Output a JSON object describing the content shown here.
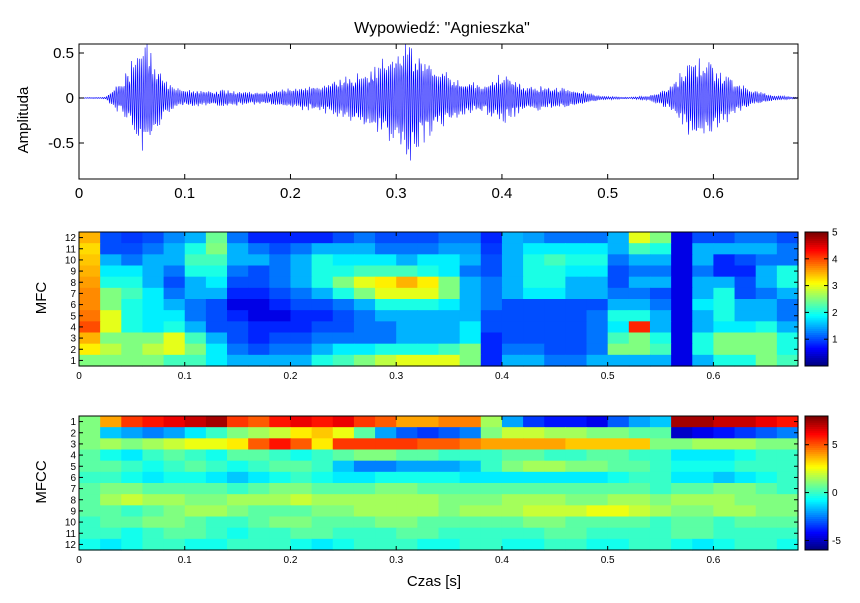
{
  "chart_data": [
    {
      "type": "line",
      "title": "Wypowiedź: \"Agnieszka\"",
      "ylabel": "Amplituda",
      "xlabel": "",
      "xlim": [
        0,
        0.68
      ],
      "ylim": [
        -0.9,
        0.6
      ],
      "xticks": [
        0,
        0.1,
        0.2,
        0.3,
        0.4,
        0.5,
        0.6
      ],
      "xtick_labels": [
        "0",
        "0.1",
        "0.2",
        "0.3",
        "0.4",
        "0.5",
        "0.6"
      ],
      "yticks": [
        0.5,
        0,
        -0.5
      ],
      "ytick_labels": [
        "0.5",
        "0",
        "-0.5"
      ],
      "grid": false,
      "color": "#0000ff",
      "series": [
        {
          "x": [
            0,
            0.025,
            0.03,
            0.04,
            0.05,
            0.06,
            0.07,
            0.08,
            0.09,
            0.1,
            0.12,
            0.14,
            0.16,
            0.18,
            0.2,
            0.22,
            0.24,
            0.26,
            0.28,
            0.3,
            0.31,
            0.32,
            0.34,
            0.36,
            0.38,
            0.4,
            0.42,
            0.44,
            0.46,
            0.48,
            0.49,
            0.5,
            0.52,
            0.54,
            0.56,
            0.58,
            0.6,
            0.62,
            0.64,
            0.66,
            0.68
          ],
          "envelope": [
            0.005,
            0.01,
            0.08,
            0.2,
            0.45,
            0.7,
            0.5,
            0.25,
            0.12,
            0.1,
            0.09,
            0.1,
            0.08,
            0.08,
            0.12,
            0.15,
            0.2,
            0.28,
            0.4,
            0.55,
            0.8,
            0.6,
            0.35,
            0.25,
            0.15,
            0.3,
            0.15,
            0.14,
            0.12,
            0.08,
            0.03,
            0.02,
            0.01,
            0.03,
            0.15,
            0.5,
            0.4,
            0.2,
            0.08,
            0.03,
            0.01
          ]
        }
      ]
    },
    {
      "type": "heatmap",
      "ylabel": "MFC",
      "xlabel": "",
      "xlim": [
        0,
        0.68
      ],
      "ylim": [
        1,
        12
      ],
      "xticks": [
        0,
        0.1,
        0.2,
        0.3,
        0.4,
        0.5,
        0.6
      ],
      "xtick_labels": [
        "0",
        "0.1",
        "0.2",
        "0.3",
        "0.4",
        "0.5",
        "0.6"
      ],
      "yticks": [
        1,
        2,
        3,
        4,
        5,
        6,
        7,
        8,
        9,
        10,
        11,
        12
      ],
      "ytick_labels": [
        "1",
        "2",
        "3",
        "4",
        "5",
        "6",
        "7",
        "8",
        "9",
        "10",
        "11",
        "12"
      ],
      "colormap": "jet",
      "clim": [
        0,
        5
      ],
      "colorbar_ticks": [
        1,
        2,
        3,
        4,
        5
      ],
      "colorbar_tick_labels": [
        "1",
        "2",
        "3",
        "4",
        "5"
      ],
      "rows_top_to_bottom": [
        12,
        11,
        10,
        9,
        8,
        7,
        6,
        5,
        4,
        3,
        2,
        1
      ],
      "time_bins": [
        0.0,
        0.02,
        0.04,
        0.06,
        0.08,
        0.1,
        0.12,
        0.14,
        0.16,
        0.18,
        0.2,
        0.22,
        0.24,
        0.26,
        0.28,
        0.3,
        0.32,
        0.34,
        0.36,
        0.38,
        0.4,
        0.42,
        0.44,
        0.46,
        0.48,
        0.5,
        0.52,
        0.54,
        0.56,
        0.58,
        0.6,
        0.62,
        0.64,
        0.66
      ],
      "values": [
        [
          3.5,
          1.0,
          0.9,
          1.0,
          1.3,
          1.5,
          2.4,
          1.2,
          0.8,
          0.8,
          0.8,
          0.8,
          1.0,
          1.2,
          1.0,
          1.0,
          1.0,
          1.2,
          1.2,
          0.8,
          1.5,
          1.4,
          1.2,
          1.2,
          1.2,
          1.5,
          3.0,
          2.5,
          0.5,
          1.0,
          1.0,
          1.2,
          1.2,
          1.0
        ],
        [
          3.3,
          1.0,
          1.0,
          1.2,
          1.5,
          2.0,
          2.5,
          1.5,
          1.2,
          1.0,
          1.2,
          1.5,
          1.5,
          1.5,
          1.2,
          1.2,
          1.2,
          1.4,
          1.4,
          0.9,
          1.5,
          1.8,
          1.8,
          1.8,
          1.8,
          1.5,
          2.2,
          2.0,
          0.5,
          1.5,
          1.5,
          1.5,
          1.5,
          1.2
        ],
        [
          3.4,
          1.5,
          1.2,
          1.5,
          1.5,
          2.2,
          2.2,
          1.5,
          1.5,
          1.2,
          1.5,
          2.0,
          1.8,
          1.8,
          1.8,
          1.5,
          1.8,
          1.8,
          1.5,
          1.0,
          1.5,
          2.0,
          2.2,
          2.0,
          2.0,
          1.2,
          1.5,
          1.5,
          0.5,
          1.5,
          0.8,
          1.0,
          1.2,
          1.2
        ],
        [
          3.5,
          1.8,
          1.8,
          1.5,
          1.2,
          2.0,
          2.0,
          1.2,
          1.0,
          1.2,
          1.5,
          2.0,
          2.0,
          2.2,
          2.2,
          2.2,
          2.0,
          1.8,
          1.2,
          1.0,
          1.5,
          2.0,
          2.0,
          1.8,
          1.8,
          1.0,
          1.2,
          1.2,
          0.5,
          1.2,
          0.8,
          0.8,
          1.5,
          2.0
        ],
        [
          3.6,
          2.0,
          2.0,
          1.5,
          1.0,
          1.5,
          1.8,
          1.0,
          1.0,
          1.2,
          1.5,
          2.0,
          2.5,
          3.0,
          3.2,
          3.5,
          3.2,
          2.5,
          1.5,
          1.2,
          1.5,
          2.0,
          2.0,
          1.5,
          1.5,
          1.0,
          1.5,
          1.5,
          0.5,
          1.5,
          1.5,
          1.0,
          1.5,
          2.0
        ],
        [
          3.7,
          2.5,
          2.2,
          1.8,
          1.2,
          1.5,
          1.5,
          0.8,
          0.8,
          1.0,
          1.2,
          1.5,
          2.0,
          2.5,
          3.0,
          3.0,
          3.0,
          2.5,
          1.5,
          1.2,
          1.5,
          1.8,
          1.8,
          1.5,
          1.5,
          1.2,
          1.2,
          1.0,
          0.5,
          1.5,
          2.0,
          1.0,
          1.2,
          1.5
        ],
        [
          3.7,
          2.5,
          2.0,
          1.8,
          1.5,
          1.2,
          1.0,
          0.5,
          0.5,
          0.8,
          1.0,
          1.0,
          1.2,
          1.5,
          2.0,
          2.0,
          2.0,
          1.8,
          1.5,
          1.2,
          1.0,
          1.0,
          1.0,
          1.0,
          1.0,
          1.5,
          1.5,
          1.2,
          0.5,
          1.8,
          2.0,
          1.5,
          1.5,
          1.2
        ],
        [
          3.8,
          3.0,
          2.0,
          1.8,
          1.8,
          1.2,
          1.0,
          0.8,
          0.5,
          0.5,
          0.8,
          0.8,
          1.0,
          1.2,
          1.5,
          1.5,
          1.5,
          1.5,
          1.5,
          1.0,
          1.0,
          1.0,
          1.0,
          1.0,
          1.2,
          2.0,
          2.0,
          1.5,
          0.5,
          1.5,
          2.0,
          1.5,
          1.5,
          1.2
        ],
        [
          4.0,
          3.0,
          2.0,
          1.8,
          2.0,
          1.5,
          1.0,
          1.0,
          0.8,
          0.8,
          0.8,
          1.0,
          1.0,
          1.2,
          1.2,
          1.5,
          1.5,
          1.5,
          1.8,
          1.0,
          1.0,
          1.0,
          1.0,
          1.0,
          1.2,
          1.8,
          4.2,
          1.5,
          0.5,
          1.5,
          1.8,
          1.8,
          2.0,
          1.5
        ],
        [
          3.5,
          2.5,
          2.5,
          2.5,
          3.0,
          2.2,
          1.5,
          1.0,
          0.8,
          1.0,
          1.0,
          1.2,
          1.2,
          1.2,
          1.2,
          1.5,
          1.5,
          1.5,
          1.8,
          0.8,
          1.0,
          1.0,
          1.0,
          1.0,
          1.2,
          2.2,
          2.5,
          2.0,
          0.5,
          2.0,
          2.5,
          2.5,
          2.5,
          2.0
        ],
        [
          3.2,
          2.8,
          2.5,
          2.8,
          3.0,
          2.5,
          1.8,
          1.2,
          1.0,
          1.2,
          1.2,
          1.5,
          1.8,
          1.8,
          2.0,
          2.0,
          2.0,
          2.2,
          2.5,
          0.8,
          1.2,
          1.2,
          1.0,
          1.0,
          1.2,
          2.5,
          2.5,
          2.2,
          0.5,
          2.0,
          2.5,
          2.5,
          2.5,
          2.0
        ],
        [
          2.5,
          2.5,
          2.5,
          2.5,
          2.2,
          2.2,
          1.8,
          1.5,
          1.5,
          1.5,
          1.5,
          2.0,
          2.2,
          2.5,
          2.8,
          3.0,
          3.0,
          3.0,
          2.5,
          0.8,
          1.5,
          1.5,
          1.2,
          1.2,
          1.5,
          1.5,
          1.5,
          1.5,
          0.5,
          1.5,
          2.0,
          2.0,
          2.5,
          2.2
        ]
      ]
    },
    {
      "type": "heatmap",
      "ylabel": "MFCC",
      "xlabel": "Czas [s]",
      "xlim": [
        0,
        0.68
      ],
      "ylim": [
        1,
        12
      ],
      "xticks": [
        0,
        0.1,
        0.2,
        0.3,
        0.4,
        0.5,
        0.6
      ],
      "xtick_labels": [
        "0",
        "0.1",
        "0.2",
        "0.3",
        "0.4",
        "0.5",
        "0.6"
      ],
      "yticks": [
        1,
        2,
        3,
        4,
        5,
        6,
        7,
        8,
        9,
        10,
        11,
        12
      ],
      "ytick_labels": [
        "1",
        "2",
        "3",
        "4",
        "5",
        "6",
        "7",
        "8",
        "9",
        "10",
        "11",
        "12"
      ],
      "colormap": "jet",
      "clim": [
        -6,
        8
      ],
      "colorbar_ticks": [
        5,
        0,
        -5
      ],
      "colorbar_tick_labels": [
        "5",
        "0",
        "-5"
      ],
      "rows_top_to_bottom": [
        1,
        2,
        3,
        4,
        5,
        6,
        7,
        8,
        9,
        10,
        11,
        12
      ],
      "time_bins": [
        0.0,
        0.02,
        0.04,
        0.06,
        0.08,
        0.1,
        0.12,
        0.14,
        0.16,
        0.18,
        0.2,
        0.22,
        0.24,
        0.26,
        0.28,
        0.3,
        0.32,
        0.34,
        0.36,
        0.38,
        0.4,
        0.42,
        0.44,
        0.46,
        0.48,
        0.5,
        0.52,
        0.54,
        0.56,
        0.58,
        0.6,
        0.62,
        0.64,
        0.66
      ],
      "values": [
        [
          1.0,
          4.0,
          5.5,
          6.0,
          6.5,
          7.0,
          7.5,
          5.5,
          5.0,
          6.0,
          6.5,
          6.0,
          6.5,
          5.5,
          5.0,
          4.0,
          4.0,
          4.5,
          4.5,
          1.5,
          -2.0,
          -3.5,
          -4.0,
          -4.0,
          -4.5,
          -3.0,
          -2.0,
          -1.5,
          7.5,
          7.5,
          7.0,
          7.0,
          6.5,
          6.0
        ],
        [
          1.0,
          -1.5,
          -2.0,
          -2.5,
          -2.0,
          -1.0,
          0.0,
          1.0,
          1.5,
          2.0,
          3.0,
          3.5,
          2.5,
          0.5,
          -2.0,
          -3.0,
          -3.5,
          -3.0,
          -2.5,
          1.0,
          2.0,
          2.0,
          1.5,
          1.5,
          1.0,
          1.0,
          0.5,
          0.5,
          -5.0,
          -4.5,
          -4.0,
          -3.5,
          -3.0,
          -2.5
        ],
        [
          1.0,
          1.5,
          1.0,
          1.5,
          2.0,
          2.5,
          2.5,
          3.0,
          5.0,
          6.0,
          5.0,
          3.0,
          5.5,
          5.5,
          5.5,
          5.5,
          5.0,
          5.0,
          4.5,
          4.0,
          4.0,
          4.0,
          4.0,
          3.5,
          3.5,
          3.5,
          3.5,
          1.0,
          1.0,
          1.5,
          1.5,
          1.5,
          1.0,
          1.0
        ],
        [
          0.5,
          -0.5,
          -1.0,
          0.0,
          0.5,
          0.0,
          -0.5,
          0.5,
          0.5,
          0.0,
          -0.5,
          0.0,
          0.5,
          1.0,
          1.0,
          0.5,
          0.5,
          0.0,
          0.0,
          0.0,
          0.5,
          0.5,
          0.0,
          0.0,
          0.5,
          0.5,
          0.0,
          0.0,
          -1.0,
          -1.0,
          -1.0,
          -0.5,
          0.0,
          0.0
        ],
        [
          0.5,
          0.5,
          0.0,
          -0.5,
          0.0,
          0.5,
          0.0,
          -0.5,
          0.0,
          0.5,
          0.5,
          0.0,
          -1.5,
          -2.5,
          -2.5,
          -2.0,
          -2.0,
          -2.0,
          -1.5,
          0.0,
          1.0,
          1.5,
          1.5,
          1.0,
          1.0,
          0.5,
          0.5,
          0.0,
          -0.5,
          -0.5,
          -0.5,
          0.0,
          0.0,
          0.0
        ],
        [
          0.0,
          0.0,
          -0.5,
          -1.0,
          -0.5,
          -0.5,
          -1.0,
          -1.5,
          -1.0,
          -0.5,
          0.0,
          -0.5,
          -1.0,
          -1.0,
          -0.5,
          -0.5,
          -0.5,
          -0.5,
          -1.0,
          -1.0,
          -1.0,
          -1.0,
          -1.0,
          -1.0,
          -1.0,
          -0.5,
          0.0,
          0.0,
          -1.0,
          -1.0,
          -1.5,
          -1.0,
          -0.5,
          0.0
        ],
        [
          0.5,
          1.0,
          1.0,
          0.5,
          0.5,
          0.5,
          0.5,
          0.0,
          0.5,
          1.0,
          1.0,
          0.5,
          0.5,
          0.5,
          1.0,
          1.0,
          0.5,
          0.5,
          0.5,
          0.5,
          0.5,
          0.5,
          0.5,
          0.5,
          0.5,
          0.5,
          0.5,
          0.0,
          0.5,
          0.5,
          1.0,
          1.0,
          0.5,
          0.0
        ],
        [
          0.5,
          1.5,
          2.0,
          1.5,
          1.5,
          1.0,
          1.0,
          1.5,
          1.5,
          1.5,
          2.0,
          1.5,
          1.5,
          1.5,
          1.5,
          1.5,
          1.5,
          1.0,
          1.0,
          1.0,
          1.5,
          1.5,
          1.5,
          1.0,
          1.0,
          1.5,
          1.5,
          1.0,
          1.5,
          1.5,
          1.5,
          1.0,
          1.0,
          1.0
        ],
        [
          0.5,
          0.5,
          0.0,
          0.5,
          1.0,
          1.5,
          1.5,
          1.0,
          0.5,
          0.5,
          0.5,
          1.0,
          1.0,
          1.5,
          1.5,
          1.5,
          1.5,
          1.0,
          1.5,
          1.5,
          1.5,
          2.0,
          2.0,
          2.0,
          2.5,
          2.5,
          2.0,
          1.5,
          1.0,
          1.0,
          1.5,
          1.5,
          1.0,
          1.0
        ],
        [
          0.0,
          0.5,
          0.5,
          1.0,
          1.0,
          0.5,
          0.0,
          0.0,
          0.5,
          1.0,
          1.0,
          0.5,
          0.5,
          0.5,
          1.0,
          1.0,
          0.5,
          0.5,
          0.5,
          0.5,
          0.5,
          1.0,
          1.0,
          0.5,
          0.5,
          0.5,
          0.5,
          0.0,
          0.5,
          0.5,
          0.0,
          0.5,
          0.5,
          0.5
        ],
        [
          0.0,
          0.0,
          -0.5,
          0.0,
          0.5,
          0.5,
          0.0,
          -0.5,
          0.0,
          0.0,
          0.5,
          0.5,
          0.0,
          0.0,
          0.0,
          0.5,
          0.5,
          0.0,
          0.0,
          0.0,
          0.0,
          0.0,
          0.5,
          0.5,
          0.0,
          0.0,
          0.0,
          0.0,
          0.5,
          0.5,
          0.0,
          0.0,
          0.0,
          0.0
        ],
        [
          -0.5,
          -1.0,
          -0.5,
          0.0,
          0.0,
          -0.5,
          -0.5,
          0.0,
          0.0,
          0.0,
          -0.5,
          -1.0,
          -0.5,
          0.0,
          0.0,
          0.0,
          -0.5,
          -0.5,
          0.0,
          0.0,
          -0.5,
          -0.5,
          0.0,
          0.0,
          -0.5,
          -0.5,
          0.0,
          0.0,
          -0.5,
          -1.0,
          -0.5,
          0.0,
          0.0,
          -0.5
        ]
      ]
    }
  ]
}
